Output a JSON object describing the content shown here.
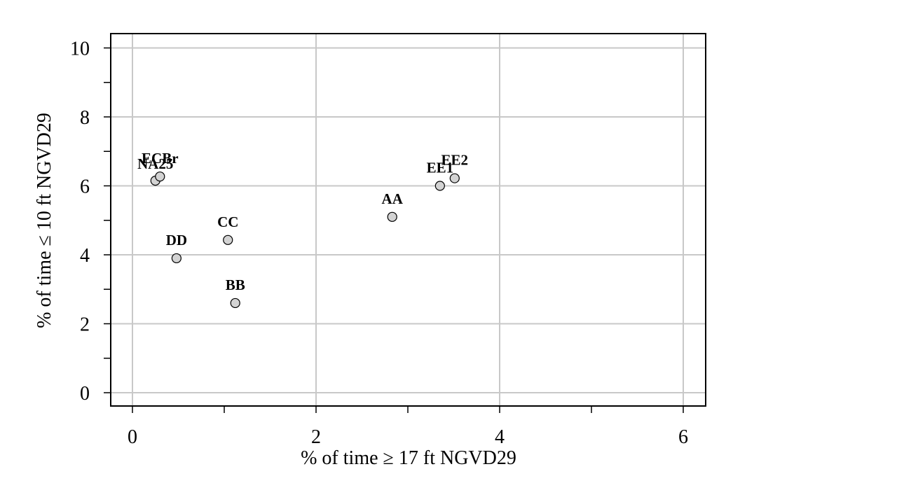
{
  "chart_data": {
    "type": "scatter",
    "xlabel": "% of time ≥ 17 ft NGVD29",
    "ylabel": "% of time ≤ 10 ft NGVD29",
    "xlim": [
      -0.25,
      6.25
    ],
    "ylim": [
      -0.4,
      10.4
    ],
    "x_ticks": [
      "0",
      "2",
      "4",
      "6"
    ],
    "y_ticks": [
      "0",
      "2",
      "4",
      "6",
      "8",
      "10"
    ],
    "grid": true,
    "points": [
      {
        "label": "NA25",
        "x": 0.25,
        "y": 6.15
      },
      {
        "label": "ECBr",
        "x": 0.3,
        "y": 6.27
      },
      {
        "label": "DD",
        "x": 0.48,
        "y": 3.9
      },
      {
        "label": "CC",
        "x": 1.04,
        "y": 4.43
      },
      {
        "label": "BB",
        "x": 1.12,
        "y": 2.6
      },
      {
        "label": "AA",
        "x": 2.83,
        "y": 5.1
      },
      {
        "label": "EE1",
        "x": 3.35,
        "y": 6.0
      },
      {
        "label": "EE2",
        "x": 3.51,
        "y": 6.22
      }
    ]
  }
}
